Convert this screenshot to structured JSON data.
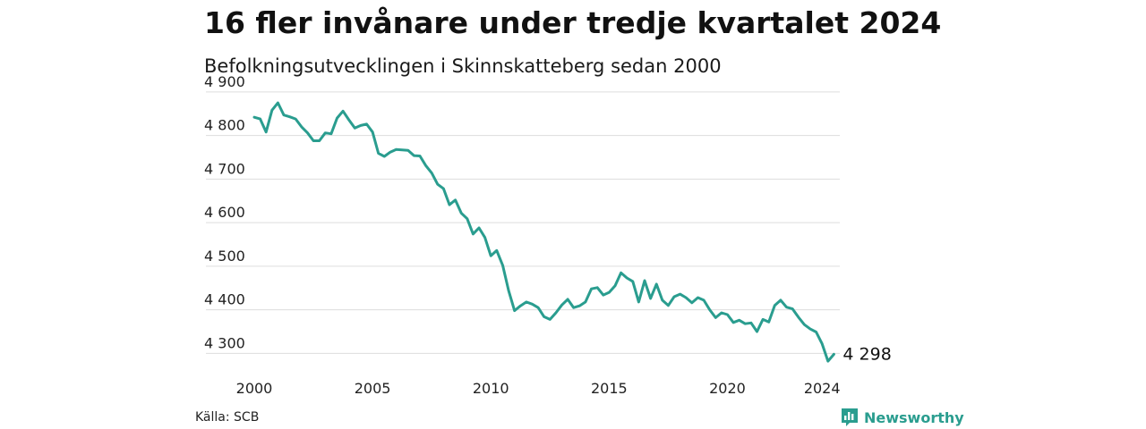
{
  "title": "16 fler invånare under tredje kvartalet 2024",
  "subtitle": "Befolkningsutvecklingen i Skinnskatteberg sedan 2000",
  "source": "Källa: SCB",
  "brand": {
    "name": "Newsworthy",
    "icon": "bar-chart-logo-icon"
  },
  "colors": {
    "line": "#2a9d8f",
    "grid": "#dddddd",
    "brand": "#2a9d8f"
  },
  "chart_data": {
    "type": "line",
    "title": "16 fler invånare under tredje kvartalet 2024",
    "subtitle": "Befolkningsutvecklingen i Skinnskatteberg sedan 2000",
    "xlabel": "",
    "ylabel": "",
    "x_ticks": [
      "2000",
      "2005",
      "2010",
      "2015",
      "2020",
      "2024"
    ],
    "y_ticks": [
      "4 300",
      "4 400",
      "4 500",
      "4 600",
      "4 700",
      "4 800",
      "4 900"
    ],
    "xlim": [
      2000.0,
      2024.75
    ],
    "ylim": [
      4270,
      4910
    ],
    "grid": true,
    "end_label": "4 298",
    "series": [
      {
        "x": [
          2000.0,
          2000.25,
          2000.5,
          2000.75,
          2001.0,
          2001.25,
          2001.5,
          2001.75,
          2002.0,
          2002.25,
          2002.5,
          2002.75,
          2003.0,
          2003.25,
          2003.5,
          2003.75,
          2004.0,
          2004.25,
          2004.5,
          2004.75,
          2005.0,
          2005.25,
          2005.5,
          2005.75,
          2006.0,
          2006.25,
          2006.5,
          2006.75,
          2007.0,
          2007.25,
          2007.5,
          2007.75,
          2008.0,
          2008.25,
          2008.5,
          2008.75,
          2009.0,
          2009.25,
          2009.5,
          2009.75,
          2010.0,
          2010.25,
          2010.5,
          2010.75,
          2011.0,
          2011.25,
          2011.5,
          2011.75,
          2012.0,
          2012.25,
          2012.5,
          2012.75,
          2013.0,
          2013.25,
          2013.5,
          2013.75,
          2014.0,
          2014.25,
          2014.5,
          2014.75,
          2015.0,
          2015.25,
          2015.5,
          2015.75,
          2016.0,
          2016.25,
          2016.5,
          2016.75,
          2017.0,
          2017.25,
          2017.5,
          2017.75,
          2018.0,
          2018.25,
          2018.5,
          2018.75,
          2019.0,
          2019.25,
          2019.5,
          2019.75,
          2020.0,
          2020.25,
          2020.5,
          2020.75,
          2021.0,
          2021.25,
          2021.5,
          2021.75,
          2022.0,
          2022.25,
          2022.5,
          2022.75,
          2023.0,
          2023.25,
          2023.5,
          2023.75,
          2024.0,
          2024.25,
          2024.5
        ],
        "values": [
          4842,
          4838,
          4808,
          4858,
          4875,
          4847,
          4843,
          4838,
          4820,
          4806,
          4788,
          4788,
          4806,
          4804,
          4840,
          4856,
          4836,
          4817,
          4823,
          4826,
          4808,
          4759,
          4752,
          4762,
          4768,
          4767,
          4766,
          4754,
          4753,
          4731,
          4714,
          4688,
          4678,
          4641,
          4652,
          4622,
          4609,
          4574,
          4588,
          4566,
          4524,
          4536,
          4502,
          4444,
          4398,
          4409,
          4418,
          4413,
          4405,
          4384,
          4378,
          4393,
          4411,
          4424,
          4405,
          4409,
          4418,
          4448,
          4451,
          4434,
          4440,
          4455,
          4485,
          4473,
          4465,
          4418,
          4467,
          4426,
          4459,
          4422,
          4410,
          4430,
          4436,
          4428,
          4416,
          4428,
          4422,
          4400,
          4382,
          4393,
          4389,
          4371,
          4376,
          4368,
          4370,
          4350,
          4378,
          4372,
          4410,
          4422,
          4406,
          4402,
          4383,
          4366,
          4356,
          4349,
          4322,
          4282,
          4298
        ]
      }
    ]
  }
}
